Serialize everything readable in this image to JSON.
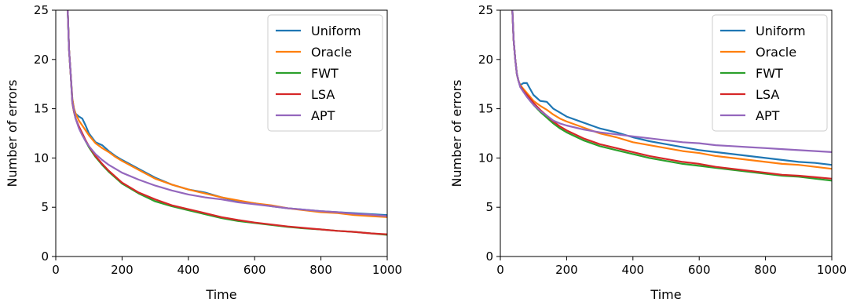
{
  "chart_data": [
    {
      "type": "line",
      "xlabel": "Time",
      "ylabel": "Number of errors",
      "xlim": [
        0,
        1000
      ],
      "ylim": [
        0,
        25
      ],
      "xticks": [
        "0",
        "200",
        "400",
        "600",
        "800",
        "1000"
      ],
      "yticks": [
        "0",
        "5",
        "10",
        "15",
        "20",
        "25"
      ],
      "legend_position": "top-right",
      "grid": false,
      "series": [
        {
          "name": "Uniform",
          "color": "#1f77b4",
          "x": [
            35,
            40,
            45,
            50,
            55,
            60,
            70,
            80,
            90,
            100,
            120,
            140,
            160,
            180,
            200,
            250,
            300,
            350,
            400,
            450,
            500,
            550,
            600,
            650,
            700,
            750,
            800,
            850,
            900,
            950,
            1000
          ],
          "y": [
            26,
            21,
            18.5,
            16,
            15,
            14.5,
            14.2,
            14,
            13.3,
            12.5,
            11.6,
            11.3,
            10.7,
            10.2,
            9.8,
            8.9,
            8,
            7.3,
            6.8,
            6.5,
            6,
            5.6,
            5.4,
            5.1,
            4.9,
            4.75,
            4.6,
            4.5,
            4.4,
            4.3,
            4.2
          ]
        },
        {
          "name": "Oracle",
          "color": "#ff7f0e",
          "x": [
            35,
            40,
            45,
            50,
            55,
            60,
            70,
            80,
            90,
            100,
            120,
            140,
            160,
            180,
            200,
            250,
            300,
            350,
            400,
            450,
            500,
            550,
            600,
            650,
            700,
            750,
            800,
            850,
            900,
            950,
            1000
          ],
          "y": [
            26,
            21,
            18.5,
            16,
            15,
            14.5,
            13.8,
            13.3,
            12.8,
            12.3,
            11.5,
            11,
            10.6,
            10.1,
            9.7,
            8.8,
            7.9,
            7.3,
            6.8,
            6.4,
            6,
            5.7,
            5.4,
            5.2,
            4.9,
            4.7,
            4.5,
            4.4,
            4.2,
            4.1,
            4
          ]
        },
        {
          "name": "FWT",
          "color": "#2ca02c",
          "x": [
            35,
            40,
            45,
            50,
            55,
            60,
            70,
            80,
            90,
            100,
            120,
            140,
            160,
            180,
            200,
            250,
            300,
            350,
            400,
            450,
            500,
            550,
            600,
            650,
            700,
            750,
            800,
            850,
            900,
            950,
            1000
          ],
          "y": [
            26,
            21,
            18.5,
            15.6,
            14.7,
            14,
            13.1,
            12.4,
            11.7,
            11.1,
            10.1,
            9.3,
            8.6,
            8,
            7.4,
            6.4,
            5.6,
            5.1,
            4.7,
            4.3,
            3.9,
            3.6,
            3.4,
            3.2,
            3,
            2.85,
            2.75,
            2.6,
            2.5,
            2.35,
            2.2
          ]
        },
        {
          "name": "LSA",
          "color": "#d62728",
          "x": [
            35,
            40,
            45,
            50,
            55,
            60,
            70,
            80,
            90,
            100,
            120,
            140,
            160,
            180,
            200,
            250,
            300,
            350,
            400,
            450,
            500,
            550,
            600,
            650,
            700,
            750,
            800,
            850,
            900,
            950,
            1000
          ],
          "y": [
            26,
            21,
            18.5,
            15.6,
            14.7,
            14,
            13.2,
            12.5,
            11.8,
            11.2,
            10.2,
            9.4,
            8.7,
            8.1,
            7.5,
            6.5,
            5.8,
            5.2,
            4.8,
            4.4,
            4,
            3.7,
            3.45,
            3.25,
            3.05,
            2.9,
            2.75,
            2.6,
            2.5,
            2.35,
            2.25
          ]
        },
        {
          "name": "APT",
          "color": "#9467bd",
          "x": [
            35,
            40,
            45,
            50,
            55,
            60,
            70,
            80,
            90,
            100,
            120,
            140,
            160,
            180,
            200,
            250,
            300,
            350,
            400,
            450,
            500,
            550,
            600,
            650,
            700,
            750,
            800,
            850,
            900,
            950,
            1000
          ],
          "y": [
            26,
            21,
            18.5,
            15.7,
            14.8,
            14,
            13,
            12.3,
            11.7,
            11.2,
            10.4,
            9.8,
            9.3,
            8.9,
            8.5,
            7.8,
            7.2,
            6.7,
            6.3,
            6,
            5.8,
            5.5,
            5.3,
            5.1,
            4.9,
            4.75,
            4.6,
            4.5,
            4.35,
            4.25,
            4.1
          ]
        }
      ]
    },
    {
      "type": "line",
      "xlabel": "Time",
      "ylabel": "Number of errors",
      "xlim": [
        0,
        1000
      ],
      "ylim": [
        0,
        25
      ],
      "xticks": [
        "0",
        "200",
        "400",
        "600",
        "800",
        "1000"
      ],
      "yticks": [
        "0",
        "5",
        "10",
        "15",
        "20",
        "25"
      ],
      "legend_position": "top-right",
      "grid": false,
      "series": [
        {
          "name": "Uniform",
          "color": "#1f77b4",
          "x": [
            35,
            40,
            45,
            50,
            55,
            60,
            70,
            80,
            90,
            100,
            120,
            140,
            160,
            180,
            200,
            250,
            300,
            350,
            400,
            450,
            500,
            550,
            600,
            650,
            700,
            750,
            800,
            850,
            900,
            950,
            1000
          ],
          "y": [
            26,
            22,
            20,
            18.5,
            17.8,
            17.4,
            17.6,
            17.6,
            17,
            16.4,
            15.8,
            15.7,
            15,
            14.6,
            14.2,
            13.6,
            13,
            12.6,
            12.1,
            11.7,
            11.4,
            11.1,
            10.8,
            10.6,
            10.4,
            10.2,
            10,
            9.8,
            9.6,
            9.5,
            9.3
          ]
        },
        {
          "name": "Oracle",
          "color": "#ff7f0e",
          "x": [
            35,
            40,
            45,
            50,
            55,
            60,
            70,
            80,
            90,
            100,
            120,
            140,
            160,
            180,
            200,
            250,
            300,
            350,
            400,
            450,
            500,
            550,
            600,
            650,
            700,
            750,
            800,
            850,
            900,
            950,
            1000
          ],
          "y": [
            26,
            22,
            20,
            18.5,
            17.8,
            17.4,
            17,
            16.6,
            16.2,
            15.8,
            15.3,
            14.9,
            14.4,
            14,
            13.7,
            13.1,
            12.5,
            12.1,
            11.6,
            11.3,
            11,
            10.7,
            10.5,
            10.2,
            10,
            9.8,
            9.6,
            9.4,
            9.3,
            9.1,
            8.9
          ]
        },
        {
          "name": "FWT",
          "color": "#2ca02c",
          "x": [
            35,
            40,
            45,
            50,
            55,
            60,
            70,
            80,
            90,
            100,
            120,
            140,
            160,
            180,
            200,
            250,
            300,
            350,
            400,
            450,
            500,
            550,
            600,
            650,
            700,
            750,
            800,
            850,
            900,
            950,
            1000
          ],
          "y": [
            26,
            22,
            20,
            18.5,
            17.8,
            17.3,
            16.8,
            16.3,
            15.8,
            15.4,
            14.7,
            14.1,
            13.5,
            13,
            12.6,
            11.8,
            11.2,
            10.8,
            10.4,
            10,
            9.7,
            9.4,
            9.2,
            9,
            8.8,
            8.6,
            8.4,
            8.2,
            8.1,
            7.9,
            7.7
          ]
        },
        {
          "name": "LSA",
          "color": "#d62728",
          "x": [
            35,
            40,
            45,
            50,
            55,
            60,
            70,
            80,
            90,
            100,
            120,
            140,
            160,
            180,
            200,
            250,
            300,
            350,
            400,
            450,
            500,
            550,
            600,
            650,
            700,
            750,
            800,
            850,
            900,
            950,
            1000
          ],
          "y": [
            26,
            22,
            20,
            18.5,
            17.8,
            17.3,
            16.8,
            16.4,
            16,
            15.6,
            14.9,
            14.3,
            13.7,
            13.2,
            12.8,
            12,
            11.4,
            11,
            10.6,
            10.2,
            9.9,
            9.6,
            9.4,
            9.1,
            8.9,
            8.7,
            8.5,
            8.3,
            8.2,
            8.05,
            7.9
          ]
        },
        {
          "name": "APT",
          "color": "#9467bd",
          "x": [
            35,
            40,
            45,
            50,
            55,
            60,
            70,
            80,
            90,
            100,
            120,
            140,
            160,
            180,
            200,
            250,
            300,
            350,
            400,
            450,
            500,
            550,
            600,
            650,
            700,
            750,
            800,
            850,
            900,
            950,
            1000
          ],
          "y": [
            26,
            22,
            20,
            18.5,
            17.8,
            17.2,
            16.7,
            16.2,
            15.8,
            15.4,
            14.8,
            14.3,
            13.8,
            13.5,
            13.3,
            12.9,
            12.6,
            12.4,
            12.2,
            12,
            11.8,
            11.6,
            11.5,
            11.3,
            11.2,
            11.1,
            11,
            10.9,
            10.8,
            10.7,
            10.6
          ]
        }
      ]
    }
  ]
}
